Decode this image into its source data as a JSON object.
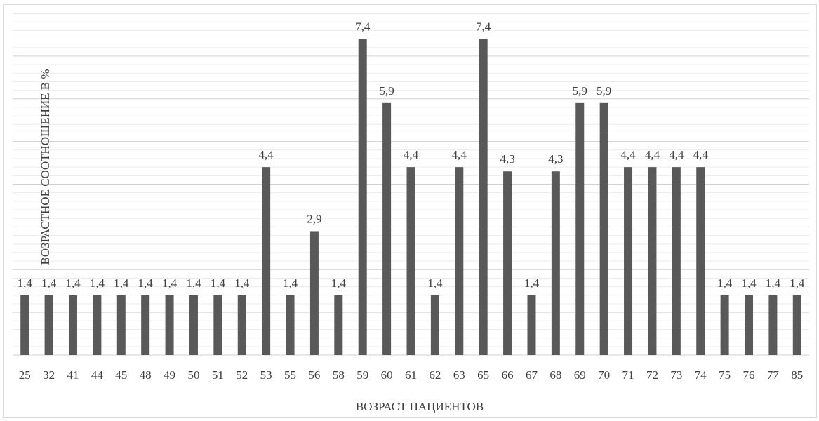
{
  "chart_data": {
    "type": "bar",
    "title": "",
    "xlabel": "ВОЗРАСТ ПАЦИЕНТОВ",
    "ylabel": "ВОЗРАСТНОЕ СООТНОШЕНИЕ В %",
    "categories": [
      "25",
      "32",
      "41",
      "44",
      "45",
      "48",
      "49",
      "50",
      "51",
      "52",
      "53",
      "55",
      "56",
      "58",
      "59",
      "60",
      "61",
      "62",
      "63",
      "65",
      "66",
      "67",
      "68",
      "69",
      "70",
      "71",
      "72",
      "73",
      "74",
      "75",
      "76",
      "77",
      "85"
    ],
    "values": [
      1.4,
      1.4,
      1.4,
      1.4,
      1.4,
      1.4,
      1.4,
      1.4,
      1.4,
      1.4,
      4.4,
      1.4,
      2.9,
      1.4,
      7.4,
      5.9,
      4.4,
      1.4,
      4.4,
      7.4,
      4.3,
      1.4,
      4.3,
      5.9,
      5.9,
      4.4,
      4.4,
      4.4,
      4.4,
      1.4,
      1.4,
      1.4,
      1.4
    ],
    "data_labels": [
      "1,4",
      "1,4",
      "1,4",
      "1,4",
      "1,4",
      "1,4",
      "1,4",
      "1,4",
      "1,4",
      "1,4",
      "4,4",
      "1,4",
      "2,9",
      "1,4",
      "7,4",
      "5,9",
      "4,4",
      "1,4",
      "4,4",
      "7,4",
      "4,3",
      "1,4",
      "4,3",
      "5,9",
      "5,9",
      "4,4",
      "4,4",
      "4,4",
      "4,4",
      "1,4",
      "1,4",
      "1,4",
      "1,4"
    ],
    "ylim": [
      0,
      8
    ],
    "grid": true,
    "legend": "none",
    "colors": {
      "bar": "#595959",
      "grid": "#d9d9d9",
      "text": "#404040"
    }
  }
}
